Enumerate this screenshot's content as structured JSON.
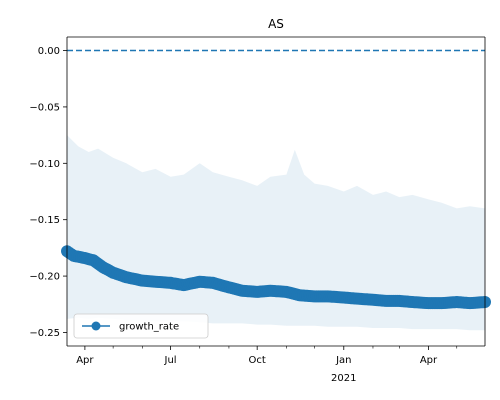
{
  "chart_data": {
    "type": "line",
    "title": "AS",
    "xlabel": "",
    "ylabel": "",
    "x_range": [
      "2020-03-13",
      "2021-05-31"
    ],
    "ylim": [
      -0.262,
      0.012
    ],
    "y_ticks": [
      0.0,
      -0.05,
      -0.1,
      -0.15,
      -0.2,
      -0.25
    ],
    "y_tick_labels": [
      "0.00",
      "−0.05",
      "−0.10",
      "−0.15",
      "−0.20",
      "−0.25"
    ],
    "x_major_ticks": [
      {
        "date": "2020-04-01",
        "label": "Apr",
        "sublabel": ""
      },
      {
        "date": "2020-07-01",
        "label": "Jul",
        "sublabel": ""
      },
      {
        "date": "2020-10-01",
        "label": "Oct",
        "sublabel": ""
      },
      {
        "date": "2021-01-01",
        "label": "Jan",
        "sublabel": "2021"
      },
      {
        "date": "2021-04-01",
        "label": "Apr",
        "sublabel": ""
      }
    ],
    "x_minor_ticks": [
      "2020-05-01",
      "2020-06-01",
      "2020-08-01",
      "2020-09-01",
      "2020-11-01",
      "2020-12-01",
      "2021-02-01",
      "2021-03-01",
      "2021-05-01"
    ],
    "reference_line": {
      "y": 0.0,
      "style": "dashed",
      "color": "#1f77b4"
    },
    "legend": {
      "placement": "lower-left",
      "entries": [
        "growth_rate"
      ]
    },
    "grid": false,
    "series": [
      {
        "name": "growth_rate",
        "color": "#1f77b4",
        "marker": "circle",
        "points": [
          {
            "x": "2020-03-13",
            "y": -0.178
          },
          {
            "x": "2020-03-20",
            "y": -0.182
          },
          {
            "x": "2020-04-01",
            "y": -0.184
          },
          {
            "x": "2020-04-10",
            "y": -0.186
          },
          {
            "x": "2020-04-20",
            "y": -0.192
          },
          {
            "x": "2020-05-01",
            "y": -0.197
          },
          {
            "x": "2020-05-15",
            "y": -0.201
          },
          {
            "x": "2020-06-01",
            "y": -0.204
          },
          {
            "x": "2020-06-15",
            "y": -0.205
          },
          {
            "x": "2020-07-01",
            "y": -0.206
          },
          {
            "x": "2020-07-15",
            "y": -0.208
          },
          {
            "x": "2020-08-01",
            "y": -0.205
          },
          {
            "x": "2020-08-15",
            "y": -0.206
          },
          {
            "x": "2020-09-01",
            "y": -0.21
          },
          {
            "x": "2020-09-15",
            "y": -0.213
          },
          {
            "x": "2020-10-01",
            "y": -0.214
          },
          {
            "x": "2020-10-15",
            "y": -0.213
          },
          {
            "x": "2020-11-01",
            "y": -0.214
          },
          {
            "x": "2020-11-15",
            "y": -0.217
          },
          {
            "x": "2020-12-01",
            "y": -0.218
          },
          {
            "x": "2020-12-15",
            "y": -0.218
          },
          {
            "x": "2021-01-01",
            "y": -0.219
          },
          {
            "x": "2021-01-15",
            "y": -0.22
          },
          {
            "x": "2021-02-01",
            "y": -0.221
          },
          {
            "x": "2021-02-15",
            "y": -0.222
          },
          {
            "x": "2021-03-01",
            "y": -0.222
          },
          {
            "x": "2021-03-15",
            "y": -0.223
          },
          {
            "x": "2021-04-01",
            "y": -0.224
          },
          {
            "x": "2021-04-15",
            "y": -0.224
          },
          {
            "x": "2021-05-01",
            "y": -0.223
          },
          {
            "x": "2021-05-15",
            "y": -0.224
          },
          {
            "x": "2021-05-31",
            "y": -0.223
          }
        ]
      }
    ],
    "band": {
      "color": "#1f77b4",
      "opacity": 0.1,
      "points": [
        {
          "x": "2020-03-13",
          "lower": -0.238,
          "upper": -0.075
        },
        {
          "x": "2020-03-25",
          "lower": -0.237,
          "upper": -0.085
        },
        {
          "x": "2020-04-05",
          "lower": -0.238,
          "upper": -0.09
        },
        {
          "x": "2020-04-15",
          "lower": -0.237,
          "upper": -0.087
        },
        {
          "x": "2020-05-01",
          "lower": -0.238,
          "upper": -0.095
        },
        {
          "x": "2020-05-15",
          "lower": -0.239,
          "upper": -0.1
        },
        {
          "x": "2020-06-01",
          "lower": -0.239,
          "upper": -0.108
        },
        {
          "x": "2020-06-15",
          "lower": -0.24,
          "upper": -0.105
        },
        {
          "x": "2020-07-01",
          "lower": -0.24,
          "upper": -0.112
        },
        {
          "x": "2020-07-15",
          "lower": -0.24,
          "upper": -0.11
        },
        {
          "x": "2020-08-01",
          "lower": -0.241,
          "upper": -0.1
        },
        {
          "x": "2020-08-15",
          "lower": -0.242,
          "upper": -0.108
        },
        {
          "x": "2020-09-01",
          "lower": -0.242,
          "upper": -0.112
        },
        {
          "x": "2020-09-15",
          "lower": -0.242,
          "upper": -0.115
        },
        {
          "x": "2020-10-01",
          "lower": -0.243,
          "upper": -0.12
        },
        {
          "x": "2020-10-15",
          "lower": -0.243,
          "upper": -0.112
        },
        {
          "x": "2020-11-01",
          "lower": -0.244,
          "upper": -0.11
        },
        {
          "x": "2020-11-10",
          "lower": -0.244,
          "upper": -0.088
        },
        {
          "x": "2020-11-20",
          "lower": -0.244,
          "upper": -0.11
        },
        {
          "x": "2020-12-01",
          "lower": -0.244,
          "upper": -0.118
        },
        {
          "x": "2020-12-15",
          "lower": -0.245,
          "upper": -0.12
        },
        {
          "x": "2021-01-01",
          "lower": -0.245,
          "upper": -0.125
        },
        {
          "x": "2021-01-15",
          "lower": -0.245,
          "upper": -0.12
        },
        {
          "x": "2021-02-01",
          "lower": -0.246,
          "upper": -0.128
        },
        {
          "x": "2021-02-15",
          "lower": -0.246,
          "upper": -0.125
        },
        {
          "x": "2021-03-01",
          "lower": -0.246,
          "upper": -0.13
        },
        {
          "x": "2021-03-15",
          "lower": -0.247,
          "upper": -0.128
        },
        {
          "x": "2021-04-01",
          "lower": -0.247,
          "upper": -0.132
        },
        {
          "x": "2021-04-15",
          "lower": -0.247,
          "upper": -0.135
        },
        {
          "x": "2021-05-01",
          "lower": -0.247,
          "upper": -0.14
        },
        {
          "x": "2021-05-15",
          "lower": -0.248,
          "upper": -0.138
        },
        {
          "x": "2021-05-31",
          "lower": -0.248,
          "upper": -0.14
        }
      ]
    }
  }
}
